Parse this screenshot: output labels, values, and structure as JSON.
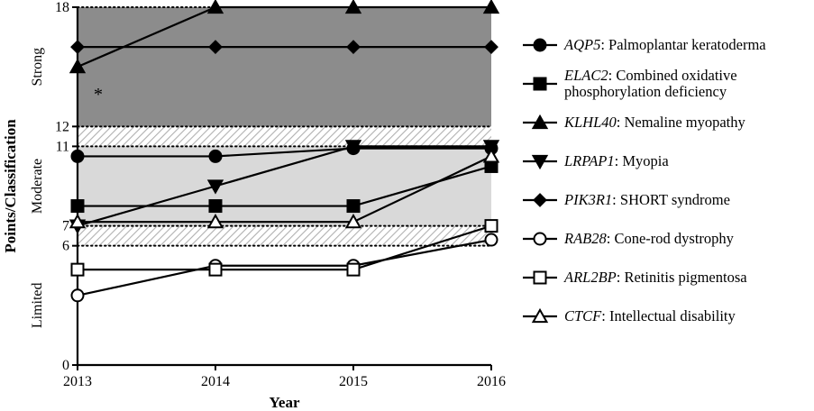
{
  "chart_data": {
    "type": "line",
    "xlabel": "Year",
    "ylabel": "Points/Classification",
    "x": [
      2013,
      2014,
      2015,
      2016
    ],
    "x_tick_labels": [
      "2013",
      "2014",
      "2015",
      "2016"
    ],
    "ylim": [
      0,
      18
    ],
    "y_tick_labels": [
      "0",
      "6",
      "7",
      "11",
      "12",
      "18"
    ],
    "bands": [
      {
        "label": "Limited",
        "from": 0,
        "to": 6,
        "fill": "#ffffff"
      },
      {
        "label": "",
        "from": 6,
        "to": 7,
        "fill": "hatch"
      },
      {
        "label": "Moderate",
        "from": 7,
        "to": 11,
        "fill": "#d9d9d9"
      },
      {
        "label": "",
        "from": 11,
        "to": 12,
        "fill": "hatch"
      },
      {
        "label": "Strong",
        "from": 12,
        "to": 18,
        "fill": "#8c8c8c"
      }
    ],
    "annotation": {
      "text": "*",
      "x": 2013,
      "y": 14.5
    },
    "series": [
      {
        "gene": "AQP5",
        "sep": ": ",
        "disease": "Palmoplantar keratoderma",
        "marker": "circle",
        "filled": true,
        "values": [
          10.5,
          10.5,
          10.9,
          10.9
        ]
      },
      {
        "gene": "ELAC2",
        "sep": ": ",
        "disease": "Combined oxidative phosphorylation deficiency",
        "marker": "square",
        "filled": true,
        "values": [
          8,
          8,
          8,
          10
        ]
      },
      {
        "gene": "KLHL40",
        "sep": ": ",
        "disease": "Nemaline myopathy",
        "marker": "triangle-up",
        "filled": true,
        "values": [
          15,
          18,
          18,
          18
        ]
      },
      {
        "gene": "LRPAP1",
        "sep": ": ",
        "disease": "Myopia",
        "marker": "triangle-down",
        "filled": true,
        "values": [
          7,
          9,
          11,
          11
        ]
      },
      {
        "gene": "PIK3R1",
        "sep": ": ",
        "disease": "SHORT syndrome",
        "marker": "diamond",
        "filled": true,
        "values": [
          16,
          16,
          16,
          16
        ]
      },
      {
        "gene": "RAB28",
        "sep": ": ",
        "disease": "Cone-rod dystrophy",
        "marker": "circle",
        "filled": false,
        "values": [
          3.5,
          5,
          5,
          6.3
        ]
      },
      {
        "gene": "ARL2BP",
        "sep": ": ",
        "disease": "Retinitis pigmentosa",
        "marker": "square",
        "filled": false,
        "values": [
          4.8,
          4.8,
          4.8,
          7
        ]
      },
      {
        "gene": "CTCF",
        "sep": ": ",
        "disease": "Intellectual disability",
        "marker": "triangle-up",
        "filled": false,
        "values": [
          7.2,
          7.2,
          7.2,
          10.5
        ]
      }
    ]
  }
}
